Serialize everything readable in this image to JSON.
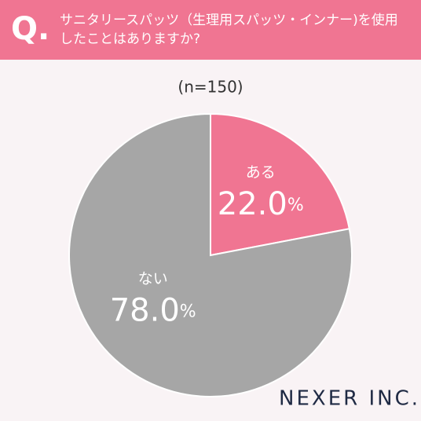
{
  "question_marker": "Q.",
  "brand": "NEXER INC.",
  "chart_data": {
    "type": "pie",
    "title": "サニタリースパッツ（生理用スパッツ・インナー)を使用したことはありますか?",
    "subtitle": "(n=150)",
    "categories": [
      "ある",
      "ない"
    ],
    "values": [
      22.0,
      78.0
    ],
    "value_labels": [
      "22.0%",
      "78.0%"
    ],
    "colors": [
      "#f07592",
      "#a6a6a6"
    ]
  }
}
